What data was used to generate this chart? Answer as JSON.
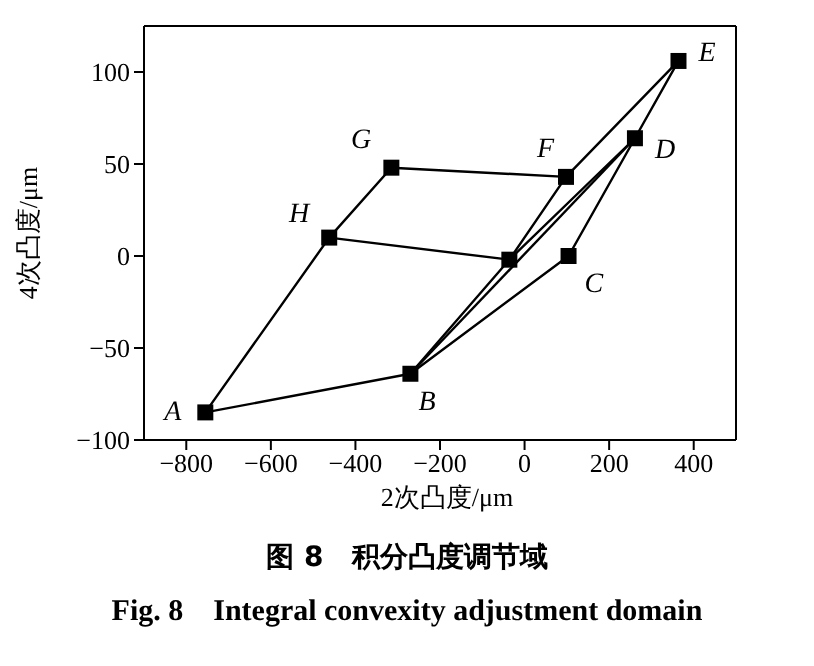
{
  "chart_data": {
    "type": "line",
    "title": "图 8　积分凸度调节域",
    "subtitle": "Fig. 8　Integral convexity adjustment domain",
    "xlabel": "2次凸度/μm",
    "ylabel": "4次凸度/μm",
    "xlim": [
      -900,
      500
    ],
    "xticks": [
      -800,
      -600,
      -400,
      -200,
      0,
      200,
      400
    ],
    "ylim": [
      -100,
      125
    ],
    "yticks": [
      -100,
      -50,
      0,
      50,
      100
    ],
    "marker": "none",
    "line_style": "solid",
    "series": [
      {
        "color": "#000000",
        "x": [
          -755,
          -462,
          -315,
          98,
          364
        ],
        "values": [
          -85,
          10,
          48,
          43,
          106
        ]
      },
      {
        "color": "#000000",
        "x": [
          364,
          261,
          104,
          -270,
          -755
        ],
        "values": [
          106,
          64,
          0,
          -64,
          -85
        ]
      },
      {
        "color": "#000000",
        "x": [
          -462,
          -36,
          261
        ],
        "values": [
          10,
          -2,
          64
        ]
      },
      {
        "color": "#000000",
        "x": [
          -270,
          -36,
          98
        ],
        "values": [
          -64,
          -2,
          43
        ]
      },
      {
        "color": "#000000",
        "x": [
          -270,
          261
        ],
        "values": [
          -64,
          64
        ]
      },
      {
        "type": "scatter",
        "marker": "square",
        "color": "#000000",
        "x": [
          -755,
          -270,
          104,
          261,
          364,
          98,
          -315,
          -462,
          -36
        ],
        "values": [
          -85,
          -64,
          0,
          64,
          106,
          43,
          48,
          10,
          -2
        ]
      }
    ],
    "annotations": [
      {
        "text": "A",
        "x": -755,
        "y": -85
      },
      {
        "text": "B",
        "x": -270,
        "y": -64
      },
      {
        "text": "C",
        "x": 104,
        "y": 0
      },
      {
        "text": "D",
        "x": 261,
        "y": 64
      },
      {
        "text": "E",
        "x": 364,
        "y": 106
      },
      {
        "text": "F",
        "x": 98,
        "y": 43
      },
      {
        "text": "G",
        "x": -315,
        "y": 48
      },
      {
        "text": "H",
        "x": -462,
        "y": 10
      }
    ]
  }
}
